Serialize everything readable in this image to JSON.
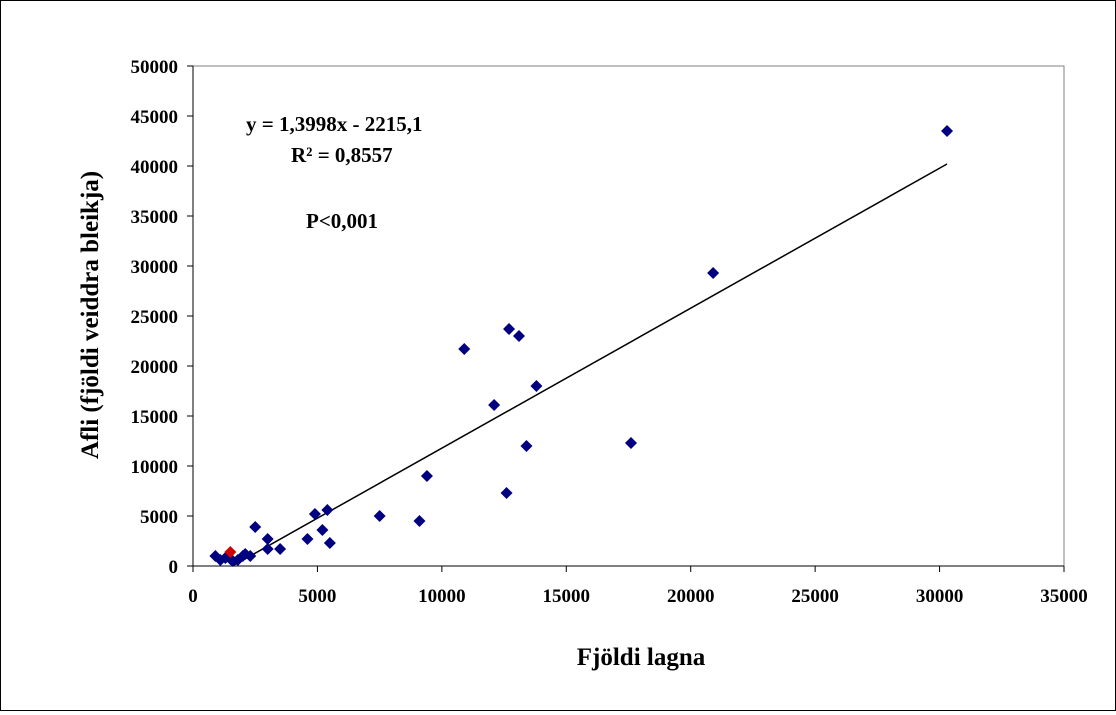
{
  "chart_data": {
    "type": "scatter",
    "title": "",
    "xlabel": "Fjöldi  lagna",
    "ylabel": "Afli (fjöldi  veiddra bleikja)",
    "xlim": [
      0,
      35000
    ],
    "ylim": [
      0,
      50000
    ],
    "x_ticks": [
      0,
      5000,
      10000,
      15000,
      20000,
      25000,
      30000,
      35000
    ],
    "y_ticks": [
      0,
      5000,
      10000,
      15000,
      20000,
      25000,
      30000,
      35000,
      40000,
      45000,
      50000
    ],
    "grid": false,
    "legend": "none",
    "annotations": [
      "y = 1,3998x - 2215,1",
      "R² = 0,8557",
      "P<0,001"
    ],
    "trendline": {
      "slope": 1.3998,
      "intercept": -2215.1,
      "x_range": [
        1600,
        30300
      ],
      "color": "#000000"
    },
    "series": [
      {
        "color": "#000080",
        "marker": "diamond",
        "points": [
          [
            900,
            1000
          ],
          [
            1100,
            600
          ],
          [
            1300,
            800
          ],
          [
            1500,
            700
          ],
          [
            1600,
            500
          ],
          [
            1800,
            600
          ],
          [
            2000,
            1000
          ],
          [
            2100,
            1200
          ],
          [
            2300,
            1000
          ],
          [
            2500,
            3900
          ],
          [
            3000,
            1700
          ],
          [
            3000,
            2700
          ],
          [
            3500,
            1700
          ],
          [
            4600,
            2700
          ],
          [
            4900,
            5200
          ],
          [
            5200,
            3600
          ],
          [
            5400,
            5600
          ],
          [
            5500,
            2300
          ],
          [
            7500,
            5000
          ],
          [
            9100,
            4500
          ],
          [
            9400,
            9000
          ],
          [
            10900,
            21700
          ],
          [
            12100,
            16100
          ],
          [
            12600,
            7300
          ],
          [
            12700,
            23700
          ],
          [
            13100,
            23000
          ],
          [
            13400,
            12000
          ],
          [
            13800,
            18000
          ],
          [
            17600,
            12300
          ],
          [
            20900,
            29300
          ],
          [
            30300,
            43500
          ]
        ]
      },
      {
        "color": "#d00000",
        "marker": "diamond",
        "points": [
          [
            1500,
            1400
          ]
        ]
      }
    ]
  }
}
